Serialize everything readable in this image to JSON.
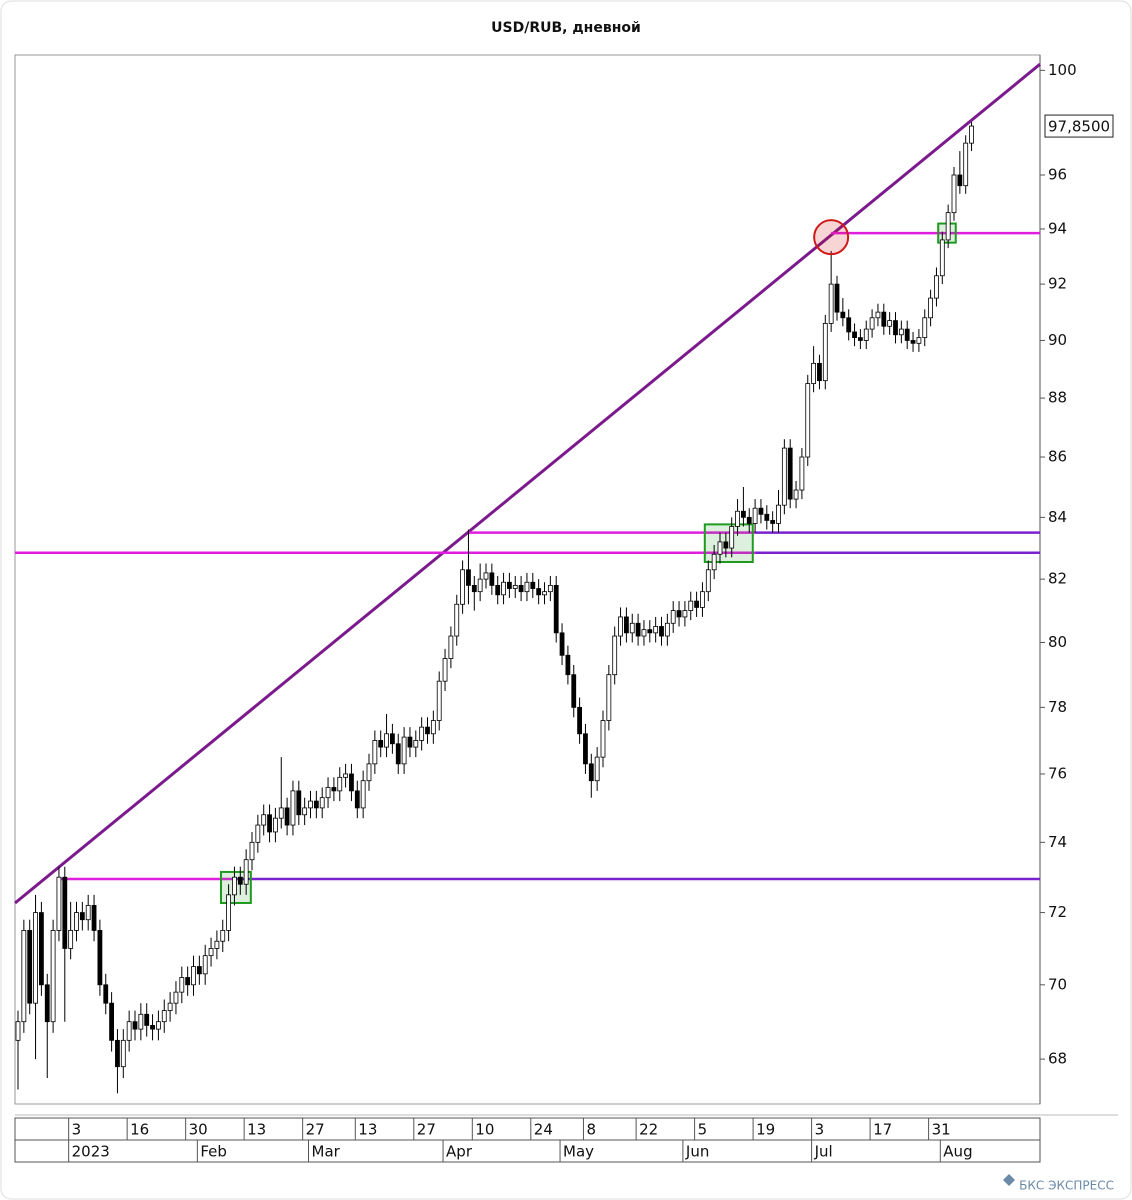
{
  "chart_data": {
    "type": "candlestick",
    "title": "USD/RUB, дневной",
    "y_scale": "log",
    "ylim": [
      66.82,
      100.6
    ],
    "yticks": [
      68,
      70,
      72,
      74,
      76,
      78,
      80,
      82,
      84,
      86,
      88,
      90,
      92,
      94,
      96,
      100
    ],
    "x_days": [
      null,
      null,
      null,
      null,
      null,
      null,
      null,
      null,
      null,
      "3",
      null,
      null,
      null,
      null,
      null,
      null,
      null,
      null,
      null,
      "16",
      null,
      null,
      null,
      null,
      null,
      null,
      null,
      null,
      null,
      "30",
      null,
      null,
      null,
      null,
      null,
      null,
      null,
      null,
      null,
      "13",
      null,
      null,
      null,
      null,
      null,
      null,
      null,
      null,
      null,
      "27",
      null,
      null,
      null,
      null,
      null,
      null,
      null,
      null,
      "13",
      null,
      null,
      null,
      null,
      null,
      null,
      null,
      null,
      null,
      "27",
      null,
      null,
      null,
      null,
      null,
      null,
      null,
      null,
      null,
      "10",
      null,
      null,
      null,
      null,
      null,
      null,
      null,
      null,
      null,
      "24",
      null,
      null,
      null,
      null,
      null,
      null,
      null,
      null,
      "8",
      null,
      null,
      null,
      null,
      null,
      null,
      null,
      null,
      "22",
      null,
      null,
      null,
      null,
      null,
      null,
      null,
      null,
      null,
      "5",
      null,
      null,
      null,
      null,
      null,
      null,
      null,
      null,
      null,
      "19",
      null,
      null,
      null,
      null,
      null,
      null,
      null,
      null,
      null,
      "3",
      null,
      null,
      null,
      null,
      null,
      null,
      null,
      null,
      null,
      "17",
      null,
      null,
      null,
      null,
      null,
      null,
      null,
      null,
      null,
      "31",
      null,
      null,
      null,
      null,
      null,
      null,
      null
    ],
    "x_months": [
      null,
      null,
      null,
      null,
      null,
      null,
      null,
      null,
      null,
      "2023",
      null,
      null,
      null,
      null,
      null,
      null,
      null,
      null,
      null,
      null,
      null,
      null,
      null,
      null,
      null,
      null,
      null,
      null,
      null,
      null,
      null,
      "Feb",
      null,
      null,
      null,
      null,
      null,
      null,
      null,
      null,
      null,
      null,
      null,
      null,
      null,
      null,
      null,
      null,
      null,
      null,
      "Mar",
      null,
      null,
      null,
      null,
      null,
      null,
      null,
      null,
      null,
      null,
      null,
      null,
      null,
      null,
      null,
      null,
      null,
      null,
      null,
      null,
      null,
      null,
      "Apr",
      null,
      null,
      null,
      null,
      null,
      null,
      null,
      null,
      null,
      null,
      null,
      null,
      null,
      null,
      null,
      null,
      null,
      null,
      null,
      "May",
      null,
      null,
      null,
      null,
      null,
      null,
      null,
      null,
      null,
      null,
      null,
      null,
      null,
      null,
      null,
      null,
      null,
      null,
      null,
      null,
      "Jun",
      null,
      null,
      null,
      null,
      null,
      null,
      null,
      null,
      null,
      null,
      null,
      null,
      null,
      null,
      null,
      null,
      null,
      null,
      null,
      null,
      null,
      "Jul",
      null,
      null,
      null,
      null,
      null,
      null,
      null,
      null,
      null,
      null,
      null,
      null,
      null,
      null,
      null,
      null,
      null,
      null,
      null,
      null,
      null,
      "Aug",
      null,
      null,
      null,
      null,
      null
    ],
    "ohlc": [
      [
        68.5,
        69.3,
        67.2,
        69.0
      ],
      [
        69.0,
        71.8,
        68.7,
        71.5
      ],
      [
        71.5,
        71.8,
        69.2,
        69.5
      ],
      [
        69.5,
        72.5,
        68.0,
        72.0
      ],
      [
        72.0,
        72.3,
        69.7,
        70.0
      ],
      [
        70.0,
        70.3,
        67.5,
        69.0
      ],
      [
        69.0,
        71.8,
        68.7,
        71.5
      ],
      [
        71.5,
        73.3,
        71.2,
        73.0
      ],
      [
        73.0,
        73.3,
        69.0,
        71.0
      ],
      [
        71.0,
        72.3,
        70.7,
        71.5
      ],
      [
        71.5,
        72.3,
        71.2,
        72.0
      ],
      [
        72.0,
        72.3,
        71.5,
        71.8
      ],
      [
        71.8,
        72.5,
        71.5,
        72.2
      ],
      [
        72.2,
        72.5,
        71.2,
        71.5
      ],
      [
        71.5,
        71.8,
        69.7,
        70.0
      ],
      [
        70.0,
        70.3,
        69.2,
        69.5
      ],
      [
        69.5,
        69.8,
        68.2,
        68.5
      ],
      [
        68.5,
        68.8,
        67.1,
        67.8
      ],
      [
        67.8,
        68.8,
        67.5,
        68.5
      ],
      [
        68.5,
        69.3,
        68.2,
        69.0
      ],
      [
        69.0,
        69.3,
        68.5,
        68.8
      ],
      [
        68.8,
        69.5,
        68.5,
        69.2
      ],
      [
        69.2,
        69.5,
        68.6,
        68.9
      ],
      [
        68.9,
        69.2,
        68.5,
        68.8
      ],
      [
        68.8,
        69.3,
        68.5,
        69.0
      ],
      [
        69.0,
        69.6,
        68.7,
        69.3
      ],
      [
        69.3,
        69.8,
        69.0,
        69.5
      ],
      [
        69.5,
        70.1,
        69.2,
        69.8
      ],
      [
        69.8,
        70.5,
        69.5,
        70.2
      ],
      [
        70.2,
        70.5,
        69.7,
        70.0
      ],
      [
        70.0,
        70.8,
        69.7,
        70.5
      ],
      [
        70.5,
        70.8,
        70.0,
        70.3
      ],
      [
        70.3,
        71.1,
        70.0,
        70.8
      ],
      [
        70.8,
        71.3,
        70.5,
        71.0
      ],
      [
        71.0,
        71.5,
        70.7,
        71.2
      ],
      [
        71.2,
        71.8,
        70.9,
        71.5
      ],
      [
        71.5,
        72.8,
        71.2,
        72.5
      ],
      [
        72.5,
        73.3,
        72.2,
        73.0
      ],
      [
        73.0,
        73.3,
        72.5,
        72.8
      ],
      [
        72.8,
        73.8,
        72.5,
        73.5
      ],
      [
        73.5,
        74.3,
        73.2,
        74.0
      ],
      [
        74.0,
        74.8,
        73.7,
        74.5
      ],
      [
        74.5,
        75.1,
        74.2,
        74.8
      ],
      [
        74.8,
        75.1,
        74.0,
        74.3
      ],
      [
        74.3,
        75.0,
        74.0,
        74.7
      ],
      [
        74.7,
        76.5,
        74.4,
        75.0
      ],
      [
        75.0,
        75.3,
        74.2,
        74.5
      ],
      [
        74.5,
        75.8,
        74.2,
        75.5
      ],
      [
        75.5,
        75.8,
        74.5,
        74.8
      ],
      [
        74.8,
        75.3,
        74.5,
        75.0
      ],
      [
        75.0,
        75.5,
        74.7,
        75.2
      ],
      [
        75.2,
        75.5,
        74.7,
        75.0
      ],
      [
        75.0,
        75.6,
        74.7,
        75.3
      ],
      [
        75.3,
        75.9,
        75.0,
        75.6
      ],
      [
        75.6,
        75.9,
        75.2,
        75.5
      ],
      [
        75.5,
        76.2,
        75.2,
        75.9
      ],
      [
        75.9,
        76.3,
        75.6,
        76.0
      ],
      [
        76.0,
        76.3,
        75.2,
        75.5
      ],
      [
        75.5,
        75.8,
        74.7,
        75.0
      ],
      [
        75.0,
        76.1,
        74.7,
        75.8
      ],
      [
        75.8,
        76.6,
        75.5,
        76.3
      ],
      [
        76.3,
        77.3,
        76.0,
        77.0
      ],
      [
        77.0,
        77.3,
        76.5,
        76.8
      ],
      [
        76.8,
        77.8,
        76.5,
        77.2
      ],
      [
        77.2,
        77.5,
        76.6,
        76.9
      ],
      [
        76.9,
        77.2,
        76.0,
        76.3
      ],
      [
        76.3,
        77.4,
        76.0,
        77.1
      ],
      [
        77.1,
        77.4,
        76.5,
        76.8
      ],
      [
        76.8,
        77.3,
        76.5,
        77.0
      ],
      [
        77.0,
        77.7,
        76.7,
        77.4
      ],
      [
        77.4,
        77.7,
        76.9,
        77.2
      ],
      [
        77.2,
        77.9,
        76.9,
        77.6
      ],
      [
        77.6,
        79.1,
        77.3,
        78.8
      ],
      [
        78.8,
        79.8,
        78.5,
        79.5
      ],
      [
        79.5,
        80.5,
        79.2,
        80.2
      ],
      [
        80.2,
        81.5,
        79.9,
        81.2
      ],
      [
        81.2,
        82.6,
        80.9,
        82.3
      ],
      [
        82.3,
        83.6,
        81.2,
        81.8
      ],
      [
        81.8,
        82.1,
        81.0,
        81.6
      ],
      [
        81.6,
        82.5,
        81.3,
        82.0
      ],
      [
        82.0,
        82.5,
        81.7,
        82.2
      ],
      [
        82.2,
        82.5,
        81.5,
        81.8
      ],
      [
        81.8,
        82.1,
        81.2,
        81.5
      ],
      [
        81.5,
        82.2,
        81.2,
        81.9
      ],
      [
        81.9,
        82.2,
        81.4,
        81.7
      ],
      [
        81.7,
        82.1,
        81.4,
        81.8
      ],
      [
        81.8,
        82.1,
        81.3,
        81.6
      ],
      [
        81.6,
        82.2,
        81.3,
        81.9
      ],
      [
        81.9,
        82.2,
        81.4,
        81.7
      ],
      [
        81.7,
        82.0,
        81.2,
        81.5
      ],
      [
        81.5,
        81.9,
        81.2,
        81.6
      ],
      [
        81.6,
        82.1,
        81.3,
        81.8
      ],
      [
        81.8,
        82.1,
        80.0,
        80.3
      ],
      [
        80.3,
        80.6,
        79.3,
        79.6
      ],
      [
        79.6,
        79.9,
        78.7,
        79.0
      ],
      [
        79.0,
        79.3,
        77.7,
        78.0
      ],
      [
        78.0,
        78.3,
        76.9,
        77.2
      ],
      [
        77.2,
        77.5,
        76.0,
        76.3
      ],
      [
        76.3,
        76.6,
        75.3,
        75.8
      ],
      [
        75.8,
        76.8,
        75.5,
        76.5
      ],
      [
        76.5,
        77.9,
        76.2,
        77.6
      ],
      [
        77.6,
        79.3,
        77.3,
        79.0
      ],
      [
        79.0,
        80.5,
        78.7,
        80.2
      ],
      [
        80.2,
        81.1,
        79.9,
        80.8
      ],
      [
        80.8,
        81.1,
        80.0,
        80.3
      ],
      [
        80.3,
        80.9,
        80.0,
        80.6
      ],
      [
        80.6,
        80.9,
        79.9,
        80.2
      ],
      [
        80.2,
        80.7,
        79.9,
        80.4
      ],
      [
        80.4,
        80.7,
        80.0,
        80.3
      ],
      [
        80.3,
        80.8,
        80.0,
        80.5
      ],
      [
        80.5,
        80.8,
        79.9,
        80.2
      ],
      [
        80.2,
        80.9,
        79.9,
        80.6
      ],
      [
        80.6,
        81.3,
        80.3,
        81.0
      ],
      [
        81.0,
        81.3,
        80.5,
        80.8
      ],
      [
        80.8,
        81.3,
        80.5,
        81.0
      ],
      [
        81.0,
        81.6,
        80.7,
        81.3
      ],
      [
        81.3,
        81.6,
        80.8,
        81.1
      ],
      [
        81.1,
        81.9,
        80.8,
        81.6
      ],
      [
        81.6,
        82.6,
        81.3,
        82.3
      ],
      [
        82.3,
        83.1,
        82.0,
        82.8
      ],
      [
        82.8,
        83.5,
        82.5,
        83.2
      ],
      [
        83.2,
        83.5,
        82.7,
        83.0
      ],
      [
        83.0,
        84.0,
        82.7,
        83.7
      ],
      [
        83.7,
        84.6,
        83.4,
        84.2
      ],
      [
        84.2,
        85.0,
        83.7,
        84.0
      ],
      [
        84.0,
        84.3,
        83.5,
        83.8
      ],
      [
        83.8,
        84.6,
        83.5,
        84.3
      ],
      [
        84.3,
        84.6,
        83.8,
        84.1
      ],
      [
        84.1,
        84.4,
        83.6,
        83.9
      ],
      [
        83.9,
        84.2,
        83.5,
        83.8
      ],
      [
        83.8,
        84.9,
        83.5,
        84.4
      ],
      [
        84.4,
        86.6,
        84.1,
        86.3
      ],
      [
        86.3,
        86.6,
        84.3,
        84.6
      ],
      [
        84.6,
        85.2,
        84.3,
        84.9
      ],
      [
        84.9,
        86.3,
        84.6,
        86.0
      ],
      [
        86.0,
        88.8,
        85.7,
        88.5
      ],
      [
        88.5,
        89.8,
        88.2,
        89.2
      ],
      [
        89.2,
        89.5,
        88.3,
        88.6
      ],
      [
        88.6,
        90.9,
        88.3,
        90.6
      ],
      [
        90.6,
        93.2,
        90.3,
        92.0
      ],
      [
        92.0,
        92.3,
        90.7,
        91.0
      ],
      [
        91.0,
        91.5,
        90.5,
        90.8
      ],
      [
        90.8,
        91.1,
        90.0,
        90.3
      ],
      [
        90.3,
        90.6,
        89.8,
        90.1
      ],
      [
        90.1,
        90.4,
        89.7,
        90.0
      ],
      [
        90.0,
        90.7,
        89.7,
        90.4
      ],
      [
        90.4,
        91.1,
        90.1,
        90.8
      ],
      [
        90.8,
        91.3,
        90.5,
        91.0
      ],
      [
        91.0,
        91.3,
        90.2,
        90.5
      ],
      [
        90.5,
        91.0,
        90.2,
        90.7
      ],
      [
        90.7,
        91.0,
        89.9,
        90.2
      ],
      [
        90.2,
        90.7,
        89.9,
        90.4
      ],
      [
        90.4,
        90.7,
        89.7,
        90.0
      ],
      [
        90.0,
        90.3,
        89.6,
        89.9
      ],
      [
        89.9,
        90.4,
        89.6,
        90.1
      ],
      [
        90.1,
        91.1,
        89.8,
        90.8
      ],
      [
        90.8,
        91.8,
        90.5,
        91.5
      ],
      [
        91.5,
        92.6,
        91.2,
        92.3
      ],
      [
        92.3,
        93.9,
        92.0,
        93.6
      ],
      [
        93.6,
        94.9,
        93.3,
        94.6
      ],
      [
        94.6,
        96.3,
        94.3,
        96.0
      ],
      [
        96.0,
        96.9,
        95.3,
        95.6
      ],
      [
        95.6,
        97.5,
        95.3,
        97.2
      ],
      [
        97.2,
        98.0,
        96.9,
        97.85
      ]
    ],
    "up_color": "#ffffff",
    "down_color": "#000000",
    "last_price": {
      "value": 97.85,
      "label": "97,8500"
    },
    "trendline": {
      "from": [
        -0.5,
        72.27
      ],
      "to": [
        174.7,
        100.24
      ],
      "color": "#7b1a8c"
    },
    "levels": [
      {
        "value": 72.95,
        "from": 7,
        "switch": 37
      },
      {
        "value": 82.85,
        "from": -0.5,
        "switch": 126
      },
      {
        "value": 83.5,
        "from": 77,
        "switch": 126
      },
      {
        "value": 93.85,
        "from": 139,
        "switch": null
      }
    ],
    "level_colors": [
      "#e01ee0",
      "#7a22d0"
    ],
    "boxes": [
      {
        "from": 34.7,
        "to": 39.8,
        "low": 72.27,
        "high": 73.15
      },
      {
        "from": 117.4,
        "to": 125.6,
        "low": 82.55,
        "high": 83.77
      },
      {
        "from": 157.3,
        "to": 160.3,
        "low": 93.5,
        "high": 94.2
      }
    ],
    "box_color": "#1e9a1e",
    "circle": {
      "x": 139,
      "y": 93.7,
      "color": "#d01818"
    }
  },
  "footer": "БКС ЭКСПРЕСС"
}
